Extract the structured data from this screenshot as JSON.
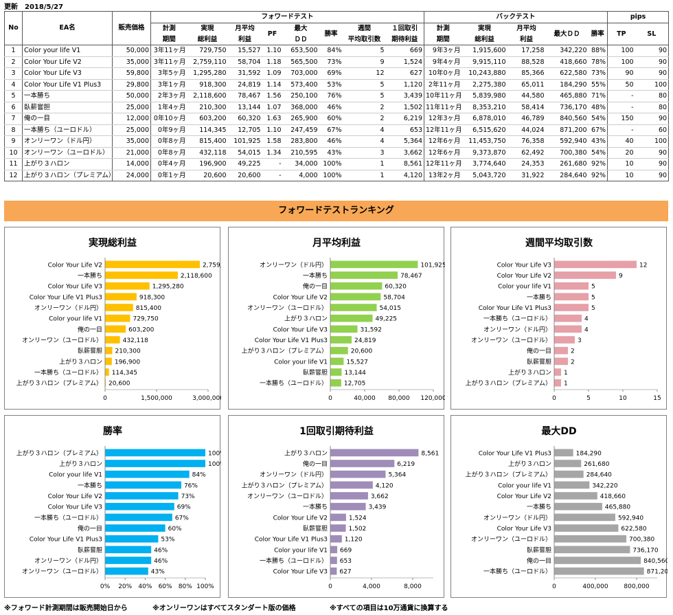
{
  "update": {
    "label": "更新",
    "date": "2018/5/27"
  },
  "headers": {
    "no": "No",
    "ea": "EA名",
    "price": "販売価格",
    "fwd_group": "フォワードテスト",
    "back_group": "バックテスト",
    "pips_group": "pips",
    "fwd_period": [
      "計測",
      "期間"
    ],
    "fwd_profit": [
      "実現",
      "総利益"
    ],
    "fwd_monthly": [
      "月平均",
      "利益"
    ],
    "fwd_pf": "PF",
    "fwd_dd": [
      "最大",
      "ＤＤ"
    ],
    "fwd_win": "勝率",
    "fwd_weekly": [
      "週間",
      "平均取引数"
    ],
    "fwd_expect": [
      "１回取引",
      "期待利益"
    ],
    "back_period": [
      "計測",
      "期間"
    ],
    "back_profit": [
      "実現",
      "総利益"
    ],
    "back_monthly": [
      "月平均",
      "利益"
    ],
    "back_dd": "最大ＤＤ",
    "back_win": "勝率",
    "tp": "TP",
    "sl": "SL"
  },
  "rows": [
    [
      "1",
      "Color your life V1",
      "50,000",
      "3年11ヶ月",
      "729,750",
      "15,527",
      "1.10",
      "653,500",
      "84%",
      "5",
      "669",
      "9年3ヶ月",
      "1,915,600",
      "17,258",
      "342,220",
      "88%",
      "100",
      "90"
    ],
    [
      "2",
      "Color Your Life V2",
      "35,000",
      "3年11ヶ月",
      "2,759,110",
      "58,704",
      "1.18",
      "565,500",
      "73%",
      "9",
      "1,524",
      "9年4ヶ月",
      "9,915,110",
      "88,528",
      "418,660",
      "78%",
      "100",
      "90"
    ],
    [
      "3",
      "Color Your Life V3",
      "59,800",
      "3年5ヶ月",
      "1,295,280",
      "31,592",
      "1.09",
      "703,000",
      "69%",
      "12",
      "627",
      "10年0ヶ月",
      "10,243,880",
      "85,366",
      "622,580",
      "73%",
      "90",
      "90"
    ],
    [
      "4",
      "Color Your Life V1 Plus3",
      "29,800",
      "3年1ヶ月",
      "918,300",
      "24,819",
      "1.14",
      "573,400",
      "53%",
      "5",
      "1,120",
      "2年11ヶ月",
      "2,275,380",
      "65,011",
      "184,290",
      "55%",
      "50",
      "100"
    ],
    [
      "5",
      "一本勝ち",
      "50,000",
      "2年3ヶ月",
      "2,118,600",
      "78,467",
      "1.56",
      "250,100",
      "76%",
      "5",
      "3,439",
      "10年11ヶ月",
      "5,839,980",
      "44,580",
      "465,880",
      "71%",
      "-",
      "80"
    ],
    [
      "6",
      "臥薪嘗胆",
      "25,000",
      "1年4ヶ月",
      "210,300",
      "13,144",
      "1.07",
      "368,000",
      "46%",
      "2",
      "1,502",
      "11年11ヶ月",
      "8,353,210",
      "58,414",
      "736,170",
      "48%",
      "-",
      "80"
    ],
    [
      "7",
      "俺の一目",
      "12,000",
      "0年10ヶ月",
      "603,200",
      "60,320",
      "1.63",
      "265,900",
      "60%",
      "2",
      "6,219",
      "12年3ヶ月",
      "6,878,010",
      "46,789",
      "840,560",
      "54%",
      "150",
      "90"
    ],
    [
      "8",
      "一本勝ち（ユーロドル）",
      "25,000",
      "0年9ヶ月",
      "114,345",
      "12,705",
      "1.10",
      "247,459",
      "67%",
      "4",
      "653",
      "12年11ヶ月",
      "6,515,620",
      "44,024",
      "871,200",
      "67%",
      "-",
      "60"
    ],
    [
      "9",
      "オンリーワン（ドル円）",
      "35,000",
      "0年8ヶ月",
      "815,400",
      "101,925",
      "1.58",
      "283,800",
      "46%",
      "4",
      "5,364",
      "12年6ヶ月",
      "11,453,750",
      "76,358",
      "592,940",
      "43%",
      "40",
      "100"
    ],
    [
      "10",
      "オンリーワン（ユーロドル）",
      "21,000",
      "0年8ヶ月",
      "432,118",
      "54,015",
      "1.34",
      "210,595",
      "43%",
      "3",
      "3,662",
      "12年6ヶ月",
      "9,373,870",
      "62,492",
      "700,380",
      "54%",
      "20",
      "90"
    ],
    [
      "11",
      "上がり３ハロン",
      "14,000",
      "0年4ヶ月",
      "196,900",
      "49,225",
      "-",
      "34,000",
      "100%",
      "1",
      "8,561",
      "12年11ヶ月",
      "3,774,640",
      "24,353",
      "261,680",
      "92%",
      "10",
      "90"
    ],
    [
      "12",
      "上がり３ハロン（プレミアム）",
      "24,000",
      "0年1ヶ月",
      "20,600",
      "20,600",
      "-",
      "4,000",
      "100%",
      "1",
      "4,120",
      "13年2ヶ月",
      "5,043,720",
      "31,922",
      "284,640",
      "92%",
      "10",
      "90"
    ]
  ],
  "banner": "フォワードテストランキング",
  "colors": {
    "banner": "#f7a755",
    "c1": "#ffc000",
    "c2": "#92d050",
    "c3": "#e6a0a8",
    "c4": "#00b0f0",
    "c5": "#a08cb8",
    "c6": "#a6a6a6"
  },
  "chart_data": [
    {
      "type": "bar",
      "title": "実現総利益",
      "categories": [
        "Color Your Life V2",
        "一本勝ち",
        "Color Your Life V3",
        "Color Your Life V1 Plus3",
        "オンリーワン（ドル円）",
        "Color your life V1",
        "俺の一目",
        "オンリーワン（ユーロドル）",
        "臥薪嘗胆",
        "上がり３ハロン",
        "一本勝ち（ユーロドル）",
        "上がり３ハロン（プレミアム）"
      ],
      "values": [
        2759110,
        2118600,
        1295280,
        918300,
        815400,
        729750,
        603200,
        432118,
        210300,
        196900,
        114345,
        20600
      ],
      "labels": [
        "2,759,110",
        "2,118,600",
        "1,295,280",
        "918,300",
        "815,400",
        "729,750",
        "603,200",
        "432,118",
        "210,300",
        "196,900",
        "114,345",
        "20,600"
      ],
      "xlim": [
        0,
        3000000
      ],
      "ticks": [
        0,
        1500000,
        3000000
      ],
      "tick_labels": [
        "0",
        "1,500,000",
        "3,000,000"
      ]
    },
    {
      "type": "bar",
      "title": "月平均利益",
      "categories": [
        "オンリーワン（ドル円）",
        "一本勝ち",
        "俺の一目",
        "Color Your Life V2",
        "オンリーワン（ユーロドル）",
        "上がり３ハロン",
        "Color Your Life V3",
        "Color Your Life V1 Plus3",
        "上がり３ハロン（プレミアム）",
        "Color your life V1",
        "臥薪嘗胆",
        "一本勝ち（ユーロドル）"
      ],
      "values": [
        101925,
        78467,
        60320,
        58704,
        54015,
        49225,
        31592,
        24819,
        20600,
        15527,
        13144,
        12705
      ],
      "labels": [
        "101,925",
        "78,467",
        "60,320",
        "58,704",
        "54,015",
        "49,225",
        "31,592",
        "24,819",
        "20,600",
        "15,527",
        "13,144",
        "12,705"
      ],
      "xlim": [
        0,
        120000
      ],
      "ticks": [
        0,
        40000,
        80000,
        120000
      ],
      "tick_labels": [
        "0",
        "40,000",
        "80,000",
        "120,000"
      ]
    },
    {
      "type": "bar",
      "title": "週間平均取引数",
      "categories": [
        "Color Your Life V3",
        "Color Your Life V2",
        "Color your life V1",
        "一本勝ち",
        "Color Your Life V1 Plus3",
        "一本勝ち（ユーロドル）",
        "オンリーワン（ドル円）",
        "オンリーワン（ユーロドル）",
        "俺の一目",
        "臥薪嘗胆",
        "上がり３ハロン",
        "上がり３ハロン（プレミアム）"
      ],
      "values": [
        12,
        9,
        5,
        5,
        5,
        4,
        4,
        3,
        2,
        2,
        1,
        1
      ],
      "labels": [
        "12",
        "9",
        "5",
        "5",
        "5",
        "4",
        "4",
        "3",
        "2",
        "2",
        "1",
        "1"
      ],
      "xlim": [
        0,
        15
      ],
      "ticks": [
        0,
        5,
        10,
        15
      ],
      "tick_labels": [
        "0",
        "5",
        "10",
        "15"
      ]
    },
    {
      "type": "bar",
      "title": "勝率",
      "categories": [
        "上がり３ハロン（プレミアム）",
        "上がり３ハロン",
        "Color your life V1",
        "一本勝ち",
        "Color Your Life V2",
        "Color Your Life V3",
        "一本勝ち（ユーロドル）",
        "俺の一目",
        "Color Your Life V1 Plus3",
        "臥薪嘗胆",
        "オンリーワン（ドル円）",
        "オンリーワン（ユーロドル）"
      ],
      "values": [
        100,
        100,
        84,
        76,
        73,
        69,
        67,
        60,
        53,
        46,
        46,
        43
      ],
      "labels": [
        "100%",
        "100%",
        "84%",
        "76%",
        "73%",
        "69%",
        "67%",
        "60%",
        "53%",
        "46%",
        "46%",
        "43%"
      ],
      "xlim": [
        0,
        100
      ],
      "ticks": [
        0,
        20,
        40,
        60,
        80,
        100
      ],
      "tick_labels": [
        "0%",
        "20%",
        "40%",
        "60%",
        "80%",
        "100%"
      ]
    },
    {
      "type": "bar",
      "title": "1回取引期待利益",
      "categories": [
        "上がり３ハロン",
        "俺の一目",
        "オンリーワン（ドル円）",
        "上がり３ハロン（プレミアム）",
        "オンリーワン（ユーロドル）",
        "一本勝ち",
        "Color Your Life V2",
        "臥薪嘗胆",
        "Color Your Life V1 Plus3",
        "Color your life V1",
        "一本勝ち（ユーロドル）",
        "Color Your Life V3"
      ],
      "values": [
        8561,
        6219,
        5364,
        4120,
        3662,
        3439,
        1524,
        1502,
        1120,
        669,
        653,
        627
      ],
      "labels": [
        "8,561",
        "6,219",
        "5,364",
        "4,120",
        "3,662",
        "3,439",
        "1,524",
        "1,502",
        "1,120",
        "669",
        "653",
        "627"
      ],
      "xlim": [
        0,
        10000
      ],
      "ticks": [
        0,
        4000,
        8000
      ],
      "tick_labels": [
        "0",
        "4,000",
        "8,000"
      ]
    },
    {
      "type": "bar",
      "title": "最大DD",
      "categories": [
        "Color Your Life V1 Plus3",
        "上がり３ハロン",
        "上がり３ハロン（プレミアム）",
        "Color your life V1",
        "Color Your Life V2",
        "一本勝ち",
        "オンリーワン（ドル円）",
        "Color Your Life V3",
        "オンリーワン（ユーロドル）",
        "臥薪嘗胆",
        "俺の一目",
        "一本勝ち（ユーロドル）"
      ],
      "values": [
        184290,
        261680,
        284640,
        342220,
        418660,
        465880,
        592940,
        622580,
        700380,
        736170,
        840560,
        871200
      ],
      "labels": [
        "184,290",
        "261,680",
        "284,640",
        "342,220",
        "418,660",
        "465,880",
        "592,940",
        "622,580",
        "700,380",
        "736,170",
        "840,560",
        "871,200"
      ],
      "xlim": [
        0,
        1000000
      ],
      "ticks": [
        0,
        400000,
        800000
      ],
      "tick_labels": [
        "0",
        "400,000",
        "800,000"
      ]
    }
  ],
  "notes": [
    "※フォワード計測期間は販売開始日から",
    "※オンリーワンはすべてスタンダート版の価格",
    "※すべての項目は10万通貨に換算する"
  ]
}
